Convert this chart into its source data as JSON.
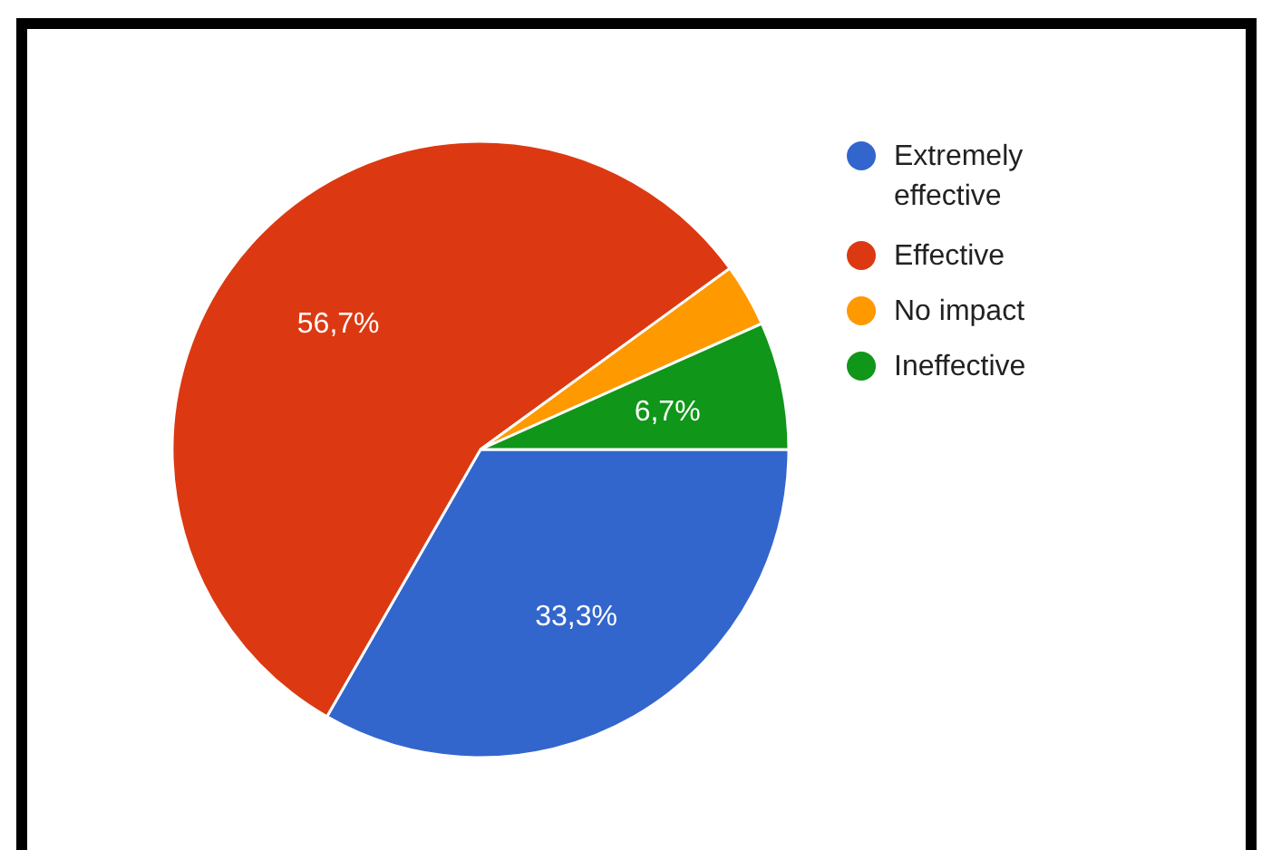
{
  "chart_data": {
    "type": "pie",
    "categories": [
      "Extremely effective",
      "Effective",
      "No impact",
      "Ineffective"
    ],
    "values": [
      33.3,
      56.7,
      3.3,
      6.7
    ],
    "colors": [
      "#3366cc",
      "#dc3912",
      "#ff9900",
      "#109618"
    ],
    "value_labels": [
      "33,3%",
      "56,7%",
      null,
      "6,7%"
    ],
    "legend": "right"
  }
}
